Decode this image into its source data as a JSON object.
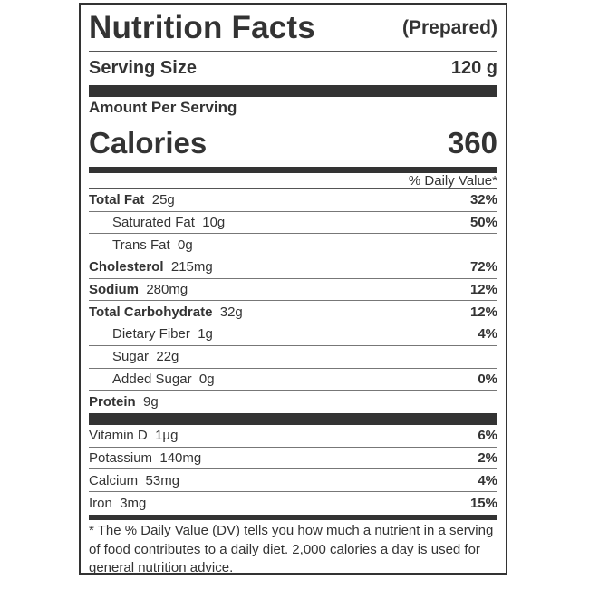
{
  "header": {
    "title": "Nutrition Facts",
    "subtitle": "(Prepared)"
  },
  "serving": {
    "label": "Serving Size",
    "value": "120 g"
  },
  "amount_label": "Amount Per Serving",
  "calories": {
    "label": "Calories",
    "value": "360"
  },
  "dv_header": "% Daily Value*",
  "nutrients": [
    {
      "name": "Total Fat",
      "amount": "25g",
      "pct": "32%",
      "bold": true,
      "indent": false
    },
    {
      "name": "Saturated Fat",
      "amount": "10g",
      "pct": "50%",
      "bold": false,
      "indent": true
    },
    {
      "name": "Trans Fat",
      "amount": "0g",
      "pct": "",
      "bold": false,
      "indent": true
    },
    {
      "name": "Cholesterol",
      "amount": "215mg",
      "pct": "72%",
      "bold": true,
      "indent": false
    },
    {
      "name": "Sodium",
      "amount": "280mg",
      "pct": "12%",
      "bold": true,
      "indent": false
    },
    {
      "name": "Total Carbohydrate",
      "amount": "32g",
      "pct": "12%",
      "bold": true,
      "indent": false
    },
    {
      "name": "Dietary Fiber",
      "amount": "1g",
      "pct": "4%",
      "bold": false,
      "indent": true
    },
    {
      "name": "Sugar",
      "amount": "22g",
      "pct": "",
      "bold": false,
      "indent": true
    },
    {
      "name": "Added Sugar",
      "amount": "0g",
      "pct": "0%",
      "bold": false,
      "indent": true
    },
    {
      "name": "Protein",
      "amount": "9g",
      "pct": "",
      "bold": true,
      "indent": false
    }
  ],
  "vitamins": [
    {
      "name": "Vitamin D",
      "amount": "1µg",
      "pct": "6%"
    },
    {
      "name": "Potassium",
      "amount": "140mg",
      "pct": "2%"
    },
    {
      "name": "Calcium",
      "amount": "53mg",
      "pct": "4%"
    },
    {
      "name": "Iron",
      "amount": "3mg",
      "pct": "15%"
    }
  ],
  "footnote": "* The % Daily Value (DV) tells you how much a nutrient in a serving of food contributes to a daily diet. 2,000 calories a day is used for general nutrition advice."
}
